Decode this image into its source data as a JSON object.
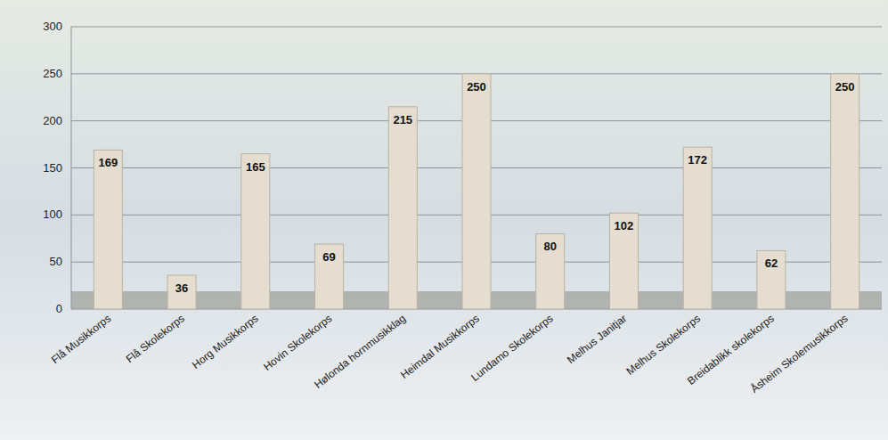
{
  "chart_data": {
    "type": "bar",
    "categories": [
      "Flå Musikkorps",
      "Flå Skolekorps",
      "Horg Musikkorps",
      "Hovin Skolekorps",
      "Hølonda hornmusikklag",
      "Heimdal Musikkorps",
      "Lundamo Skolekorps",
      "Melhus Janitjar",
      "Melhus Skolekorps",
      "Breidablikk skolekorps",
      "Åsheim Skolemusikkorps"
    ],
    "values": [
      169,
      36,
      165,
      69,
      215,
      250,
      80,
      102,
      172,
      62,
      250
    ],
    "color": "#e4ddd0",
    "ylim": [
      0,
      300
    ],
    "yticks": [
      0,
      50,
      100,
      150,
      200,
      250,
      300
    ],
    "grid": true,
    "data_labels": true
  }
}
